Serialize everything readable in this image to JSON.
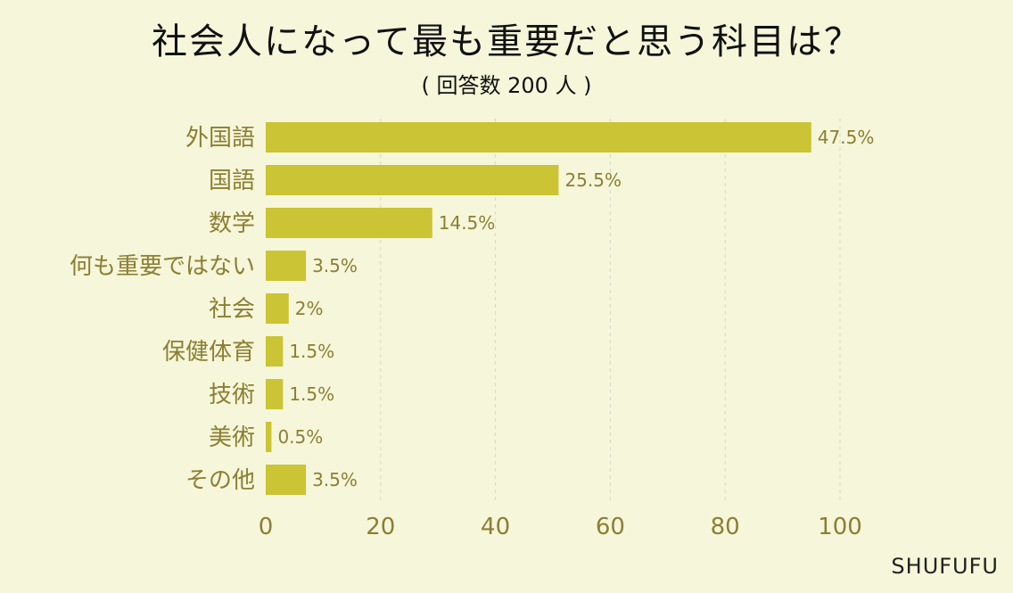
{
  "chart_data": {
    "type": "bar",
    "orientation": "horizontal",
    "title": "社会人になって最も重要だと思う科目は？",
    "subtitle": "( 回答数 200 人 )",
    "categories": [
      "外国語",
      "国語",
      "数学",
      "何も重要ではない",
      "社会",
      "保健体育",
      "技術",
      "美術",
      "その他"
    ],
    "values": [
      95,
      51,
      29,
      7,
      4,
      3,
      3,
      1,
      7
    ],
    "value_labels": [
      "47.5%",
      "25.5%",
      "14.5%",
      "3.5%",
      "2%",
      "1.5%",
      "1.5%",
      "0.5%",
      "3.5%"
    ],
    "x_ticks": [
      "0",
      "20",
      "40",
      "60",
      "80",
      "100"
    ],
    "xlim": [
      0,
      100
    ],
    "grid": true,
    "bar_color": "#cbc434"
  },
  "brand": "SHUFUFU"
}
